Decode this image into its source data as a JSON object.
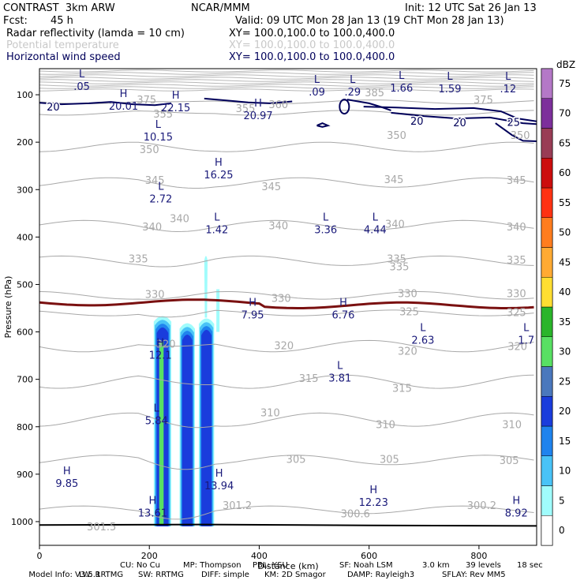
{
  "header": {
    "model": "CONTRAST  3km ARW",
    "org": "NCAR/MMM",
    "init": "Init: 12 UTC Sat 26 Jan 13",
    "fcst_label": "Fcst:",
    "fcst_value": "45 h",
    "valid": "Valid: 09 UTC Mon 28 Jan 13 (19 ChT Mon 28 Jan 13)"
  },
  "fields": [
    {
      "name": "Radar reflectivity (lamda = 10 cm)",
      "xy": "XY= 100.0,100.0 to 100.0,400.0",
      "color": "#000000"
    },
    {
      "name": "Potential temperature",
      "xy": "XY= 100.0,100.0 to 100.0,400.0",
      "color": "#c8c8c8"
    },
    {
      "name": "Horizontal wind speed",
      "xy": "XY= 100.0,100.0 to 100.0,400.0",
      "color": "#00005a"
    }
  ],
  "footer": {
    "line1": [
      "Model Info: V3.5.1",
      "CU: No Cu",
      "MP: Thompson",
      "PBL: YSU",
      "SF: Noah LSM",
      "3.0 km",
      "39 levels",
      "18 sec"
    ],
    "line2": [
      "LW: RRTMG",
      "SW: RRTMG",
      "DIFF: simple",
      "KM: 2D Smagor",
      "DAMP: Rayleigh3",
      "SFLAY: Rev MM5"
    ]
  },
  "chart_data": {
    "type": "contour",
    "xlabel": "Distance (km)",
    "ylabel": "Pressure (hPa)",
    "xlim": [
      0,
      905
    ],
    "ylim": [
      1050,
      45
    ],
    "x_ticks": [
      0,
      200,
      400,
      600,
      800
    ],
    "y_ticks": [
      100,
      200,
      300,
      400,
      500,
      600,
      700,
      800,
      900,
      1000
    ],
    "colorbar": {
      "title": "dBZ",
      "levels": [
        0,
        5,
        10,
        15,
        20,
        25,
        30,
        35,
        40,
        45,
        50,
        55,
        60,
        65,
        70,
        75
      ],
      "colors": [
        "#ffffff",
        "#a0fcfc",
        "#49c3f7",
        "#1f83ee",
        "#1a3cdc",
        "#4a78bd",
        "#58e063",
        "#2ab52a",
        "#ffde32",
        "#ffaa33",
        "#ff7d1e",
        "#ff3212",
        "#cc0d0d",
        "#993c55",
        "#7d2f9b",
        "#b478c7"
      ]
    },
    "theta_labels": [
      {
        "text": "375",
        "x": 195,
        "p": 110
      },
      {
        "text": "385",
        "x": 610,
        "p": 95
      },
      {
        "text": "375",
        "x": 808,
        "p": 110
      },
      {
        "text": "360",
        "x": 435,
        "p": 120
      },
      {
        "text": "355",
        "x": 375,
        "p": 128
      },
      {
        "text": "355",
        "x": 225,
        "p": 140
      },
      {
        "text": "350",
        "x": 200,
        "p": 215
      },
      {
        "text": "350",
        "x": 650,
        "p": 185
      },
      {
        "text": "350",
        "x": 875,
        "p": 185
      },
      {
        "text": "345",
        "x": 210,
        "p": 280
      },
      {
        "text": "345",
        "x": 422,
        "p": 293
      },
      {
        "text": "345",
        "x": 645,
        "p": 278
      },
      {
        "text": "345",
        "x": 868,
        "p": 280
      },
      {
        "text": "340",
        "x": 255,
        "p": 360
      },
      {
        "text": "340",
        "x": 205,
        "p": 378
      },
      {
        "text": "340",
        "x": 435,
        "p": 375
      },
      {
        "text": "340",
        "x": 647,
        "p": 372
      },
      {
        "text": "340",
        "x": 868,
        "p": 378
      },
      {
        "text": "335",
        "x": 180,
        "p": 445
      },
      {
        "text": "335",
        "x": 650,
        "p": 445
      },
      {
        "text": "335",
        "x": 868,
        "p": 448
      },
      {
        "text": "335",
        "x": 655,
        "p": 462
      },
      {
        "text": "330",
        "x": 210,
        "p": 520
      },
      {
        "text": "330",
        "x": 440,
        "p": 528
      },
      {
        "text": "330",
        "x": 670,
        "p": 518
      },
      {
        "text": "330",
        "x": 868,
        "p": 518
      },
      {
        "text": "325",
        "x": 673,
        "p": 557
      },
      {
        "text": "325",
        "x": 868,
        "p": 558
      },
      {
        "text": "320",
        "x": 230,
        "p": 625
      },
      {
        "text": "320",
        "x": 445,
        "p": 628
      },
      {
        "text": "320",
        "x": 670,
        "p": 640
      },
      {
        "text": "320",
        "x": 870,
        "p": 630
      },
      {
        "text": "315",
        "x": 490,
        "p": 697
      },
      {
        "text": "315",
        "x": 660,
        "p": 718
      },
      {
        "text": "310",
        "x": 420,
        "p": 770
      },
      {
        "text": "310",
        "x": 630,
        "p": 795
      },
      {
        "text": "310",
        "x": 860,
        "p": 795
      },
      {
        "text": "305",
        "x": 467,
        "p": 868
      },
      {
        "text": "305",
        "x": 637,
        "p": 868
      },
      {
        "text": "305",
        "x": 855,
        "p": 870
      },
      {
        "text": "301.2",
        "x": 360,
        "p": 965
      },
      {
        "text": "300.6",
        "x": 575,
        "p": 983
      },
      {
        "text": "300.2",
        "x": 805,
        "p": 965
      },
      {
        "text": "301.5",
        "x": 113,
        "p": 1010
      }
    ],
    "wind_labels": [
      {
        "text": "20",
        "x": 25,
        "p": 125
      },
      {
        "text": "20",
        "x": 687,
        "p": 155
      },
      {
        "text": "20",
        "x": 765,
        "p": 158
      },
      {
        "text": "25",
        "x": 863,
        "p": 157
      }
    ],
    "extrema": [
      {
        "kind": "L",
        "value": ".05",
        "x": 77,
        "p": 63
      },
      {
        "kind": "H",
        "value": "20.01",
        "x": 153,
        "p": 105
      },
      {
        "kind": "H",
        "value": "22.15",
        "x": 248,
        "p": 108
      },
      {
        "kind": "H",
        "value": "20.97",
        "x": 398,
        "p": 125
      },
      {
        "kind": "L",
        "value": ".09",
        "x": 505,
        "p": 75
      },
      {
        "kind": "L",
        "value": ".29",
        "x": 570,
        "p": 75
      },
      {
        "kind": "L",
        "value": "1.66",
        "x": 659,
        "p": 67
      },
      {
        "kind": "L",
        "value": "1.59",
        "x": 747,
        "p": 68
      },
      {
        "kind": "L",
        "value": ".12",
        "x": 853,
        "p": 68
      },
      {
        "kind": "L",
        "value": "10.15",
        "x": 216,
        "p": 170
      },
      {
        "kind": "H",
        "value": "16.25",
        "x": 326,
        "p": 250
      },
      {
        "kind": "L",
        "value": "2.72",
        "x": 221,
        "p": 300
      },
      {
        "kind": "L",
        "value": "1.42",
        "x": 323,
        "p": 365
      },
      {
        "kind": "L",
        "value": "3.36",
        "x": 521,
        "p": 365
      },
      {
        "kind": "L",
        "value": "4.44",
        "x": 611,
        "p": 365
      },
      {
        "kind": "H",
        "value": "7.95",
        "x": 388,
        "p": 545
      },
      {
        "kind": "H",
        "value": "6.76",
        "x": 553,
        "p": 545
      },
      {
        "kind": "L",
        "value": "2.63",
        "x": 698,
        "p": 598
      },
      {
        "kind": "L",
        "value": "1.7",
        "x": 886,
        "p": 598
      },
      {
        "kind": "H",
        "value": "12.1",
        "x": 220,
        "p": 630
      },
      {
        "kind": "L",
        "value": "3.81",
        "x": 547,
        "p": 678
      },
      {
        "kind": "L",
        "value": "5.84",
        "x": 213,
        "p": 768
      },
      {
        "kind": "H",
        "value": "9.85",
        "x": 50,
        "p": 900
      },
      {
        "kind": "H",
        "value": "13.94",
        "x": 327,
        "p": 905
      },
      {
        "kind": "H",
        "value": "12.23",
        "x": 608,
        "p": 940
      },
      {
        "kind": "H",
        "value": "13.61",
        "x": 206,
        "p": 963
      },
      {
        "kind": "H",
        "value": "8.92",
        "x": 868,
        "p": 963
      }
    ]
  }
}
